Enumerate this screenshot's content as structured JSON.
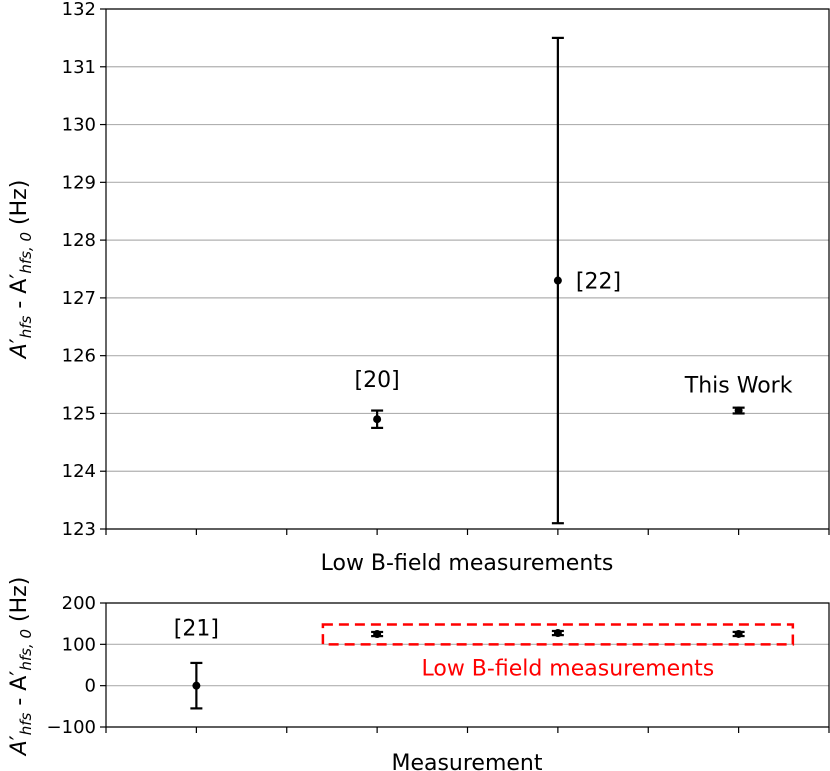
{
  "chart_data": [
    {
      "type": "scatter",
      "title": "",
      "xlabel": "Low B-field measurements",
      "ylabel": {
        "main": "A",
        "prime": "′",
        "sub1": "hfs",
        "dash": " - A",
        "sub2": "hfs, 0",
        "unit": " (Hz)"
      },
      "ylim": [
        123,
        132
      ],
      "yticks": [
        "123",
        "124",
        "125",
        "126",
        "127",
        "128",
        "129",
        "130",
        "131",
        "132"
      ],
      "grid": "horizontal",
      "points": [
        {
          "label": "[20]",
          "x": 1.5,
          "y": 124.9,
          "err": 0.15
        },
        {
          "label": "[22]",
          "x": 2.5,
          "y": 127.3,
          "err": 4.2
        },
        {
          "label": "This Work",
          "x": 3.5,
          "y": 125.05,
          "err": 0.05
        }
      ]
    },
    {
      "type": "scatter",
      "title": "",
      "xlabel": "Measurement",
      "ylabel": {
        "main": "A",
        "prime": "′",
        "sub1": "hfs",
        "dash": " - A",
        "sub2": "hfs, 0",
        "unit": " (Hz)"
      },
      "ylim": [
        -100,
        200
      ],
      "yticks": [
        "−100",
        "0",
        "100",
        "200"
      ],
      "grid": "horizontal",
      "points": [
        {
          "label": "[21]",
          "x": 0.5,
          "y": 0,
          "err": 55
        },
        {
          "label": "",
          "x": 1.5,
          "y": 124.9,
          "err": 5
        },
        {
          "label": "",
          "x": 2.5,
          "y": 127.3,
          "err": 5
        },
        {
          "label": "",
          "x": 3.5,
          "y": 125.05,
          "err": 5
        }
      ],
      "box_label": "Low B-field measurements",
      "box_color": "#ff0000"
    }
  ]
}
